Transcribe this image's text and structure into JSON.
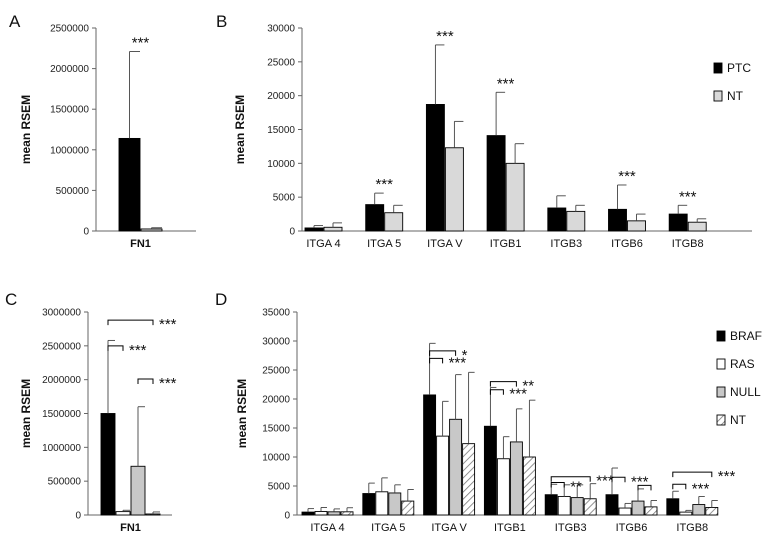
{
  "chart_data": [
    {
      "panel": "A",
      "type": "bar",
      "ylabel": "mean RSEM",
      "ylim": [
        0,
        2500000
      ],
      "yticks": [
        "0",
        "500000",
        "1000000",
        "1500000",
        "2000000",
        "2500000"
      ],
      "categories": [
        "FN1"
      ],
      "series": [
        {
          "values": [
            1140000
          ],
          "errors": [
            1070000
          ],
          "color": "#000000"
        },
        {
          "values": [
            25000
          ],
          "errors": [
            15000
          ],
          "color": "#d9d9d9"
        }
      ],
      "annotations": [
        {
          "text": "***",
          "category": 0
        }
      ]
    },
    {
      "panel": "B",
      "type": "bar",
      "ylabel": "mean RSEM",
      "ylim": [
        0,
        30000
      ],
      "yticks": [
        "0",
        "5000",
        "10000",
        "15000",
        "20000",
        "25000",
        "30000"
      ],
      "categories": [
        "ITGA 4",
        "ITGA 5",
        "ITGA V",
        "ITGB1",
        "ITGB3",
        "ITGB6",
        "ITGB8"
      ],
      "series": [
        {
          "name": "PTC",
          "values": [
            450,
            3900,
            18700,
            14100,
            3400,
            3200,
            2500
          ],
          "errors": [
            350,
            1700,
            8800,
            6400,
            1800,
            3600,
            1300
          ],
          "color": "#000000"
        },
        {
          "name": "NT",
          "values": [
            550,
            2700,
            12300,
            10000,
            2900,
            1500,
            1300
          ],
          "errors": [
            650,
            1100,
            3900,
            2900,
            900,
            1000,
            500
          ],
          "color": "#d9d9d9"
        }
      ],
      "annotations": [
        {
          "text": "***",
          "category": 1
        },
        {
          "text": "***",
          "category": 2
        },
        {
          "text": "***",
          "category": 3
        },
        {
          "text": "***",
          "category": 5
        },
        {
          "text": "***",
          "category": 6
        }
      ]
    },
    {
      "panel": "C",
      "type": "bar",
      "ylabel": "mean RSEM",
      "ylim": [
        0,
        3000000
      ],
      "yticks": [
        "0",
        "500000",
        "1000000",
        "1500000",
        "2000000",
        "2500000",
        "3000000"
      ],
      "categories": [
        "FN1"
      ],
      "series": [
        {
          "values": [
            1500000
          ],
          "errors": [
            1080000
          ],
          "color": "#000000"
        },
        {
          "values": [
            50000
          ],
          "errors": [
            20000
          ],
          "color": "#ffffff"
        },
        {
          "values": [
            720000
          ],
          "errors": [
            880000
          ],
          "color": "#c8c8c8"
        },
        {
          "values": [
            15000
          ],
          "errors": [
            30000
          ],
          "color": "#ffffff",
          "hatched": true
        }
      ],
      "annotations": [
        {
          "text": "***",
          "bracket": [
            0,
            3
          ],
          "level": 2880000
        },
        {
          "text": "***",
          "bracket": [
            0,
            1
          ],
          "level": 2500000
        },
        {
          "text": "***",
          "bracket": [
            2,
            3
          ],
          "level": 2010000
        }
      ]
    },
    {
      "panel": "D",
      "type": "bar",
      "ylabel": "mean RSEM",
      "ylim": [
        0,
        35000
      ],
      "yticks": [
        "0",
        "5000",
        "10000",
        "15000",
        "20000",
        "25000",
        "30000",
        "35000"
      ],
      "categories": [
        "ITGA 4",
        "ITGA 5",
        "ITGA V",
        "ITGB1",
        "ITGB3",
        "ITGB6",
        "ITGB8"
      ],
      "series": [
        {
          "name": "BRAF",
          "values": [
            500,
            3700,
            20700,
            15300,
            3500,
            3500,
            2800
          ],
          "errors": [
            600,
            1800,
            8900,
            6700,
            1800,
            4600,
            1300
          ],
          "color": "#000000"
        },
        {
          "name": "RAS",
          "values": [
            600,
            4000,
            13600,
            9700,
            3200,
            1200,
            500
          ],
          "errors": [
            700,
            2400,
            6000,
            3800,
            2000,
            800,
            300
          ],
          "color": "#ffffff"
        },
        {
          "name": "NULL",
          "values": [
            550,
            3800,
            16500,
            12600,
            3000,
            2400,
            1800
          ],
          "errors": [
            500,
            1400,
            7700,
            5700,
            2200,
            2100,
            1400
          ],
          "color": "#c8c8c8"
        },
        {
          "name": "NT",
          "values": [
            550,
            2400,
            12300,
            10000,
            2800,
            1400,
            1300
          ],
          "errors": [
            700,
            2000,
            12300,
            9800,
            2600,
            1100,
            1200
          ],
          "color": "#ffffff",
          "hatched": true
        }
      ],
      "annotations": [
        {
          "text": "*",
          "bracket": [
            0,
            2
          ],
          "category": 2,
          "level": 28300
        },
        {
          "text": "***",
          "bracket": [
            0,
            1
          ],
          "category": 2,
          "level": 27000
        },
        {
          "text": "**",
          "bracket": [
            0,
            2
          ],
          "category": 3,
          "level": 23000
        },
        {
          "text": "***",
          "bracket": [
            0,
            1
          ],
          "category": 3,
          "level": 21600
        },
        {
          "text": "***",
          "bracket": [
            0,
            3
          ],
          "category": 4,
          "level": 6600
        },
        {
          "text": "**",
          "bracket": [
            0,
            1
          ],
          "category": 4,
          "level": 5600
        },
        {
          "text": "***",
          "bracket": [
            0,
            1
          ],
          "category": 5,
          "level": 6500
        },
        {
          "text": "",
          "bracket": [
            2,
            3
          ],
          "category": 5,
          "level": 5100
        },
        {
          "text": "***",
          "bracket": [
            0,
            3
          ],
          "category": 6,
          "level": 7400
        },
        {
          "text": "***",
          "bracket": [
            0,
            1
          ],
          "category": 6,
          "level": 5300
        }
      ]
    }
  ]
}
